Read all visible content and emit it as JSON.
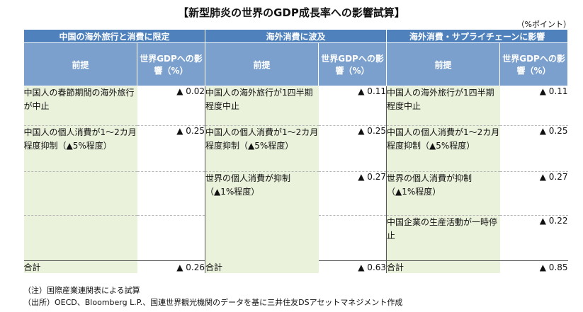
{
  "title": "【新型肺炎の世界のGDP成長率への影響試算】",
  "unit": "（%ポイント）",
  "groups": [
    {
      "header": "中国の海外旅行と消費に限定",
      "premise_label": "前提",
      "impact_label": "世界GDPへの影響（%）",
      "rows": [
        {
          "premise": "中国人の春節期間の海外旅行が中止",
          "value": "▲ 0.02"
        },
        {
          "premise": "中国人の個人消費が1～2カ月程度抑制（▲5%程度）",
          "value": "▲ 0.25"
        }
      ],
      "total_label": "合計",
      "total": "▲ 0.26"
    },
    {
      "header": "海外消費に波及",
      "premise_label": "前提",
      "impact_label": "世界GDPへの影響（%）",
      "rows": [
        {
          "premise": "中国人の海外旅行が1四半期程度中止",
          "value": "▲ 0.11"
        },
        {
          "premise": "中国人の個人消費が1～2カ月程度抑制（▲5%程度）",
          "value": "▲ 0.25"
        },
        {
          "premise": "世界の個人消費が抑制（▲1%程度）",
          "value": "▲ 0.27"
        }
      ],
      "total_label": "合計",
      "total": "▲ 0.63"
    },
    {
      "header": "海外消費・サプライチェーンに影響",
      "premise_label": "前提",
      "impact_label": "世界GDPへの影響（%）",
      "rows": [
        {
          "premise": "中国人の海外旅行が1四半期程度中止",
          "value": "▲ 0.11"
        },
        {
          "premise": "中国人の個人消費が1～2カ月程度抑制（▲5%程度）",
          "value": "▲ 0.25"
        },
        {
          "premise": "世界の個人消費が抑制（▲1%程度）",
          "value": "▲ 0.27"
        },
        {
          "premise": "中国企業の生産活動が一時停止",
          "value": "▲ 0.22"
        }
      ],
      "total_label": "合計",
      "total": "▲ 0.85"
    }
  ],
  "notes": {
    "note": "（注）国際産業連関表による試算",
    "source": "（出所）OECD、Bloomberg L.P.、国連世界観光機関のデータを基に三井住友DSアセットマネジメント作成"
  }
}
